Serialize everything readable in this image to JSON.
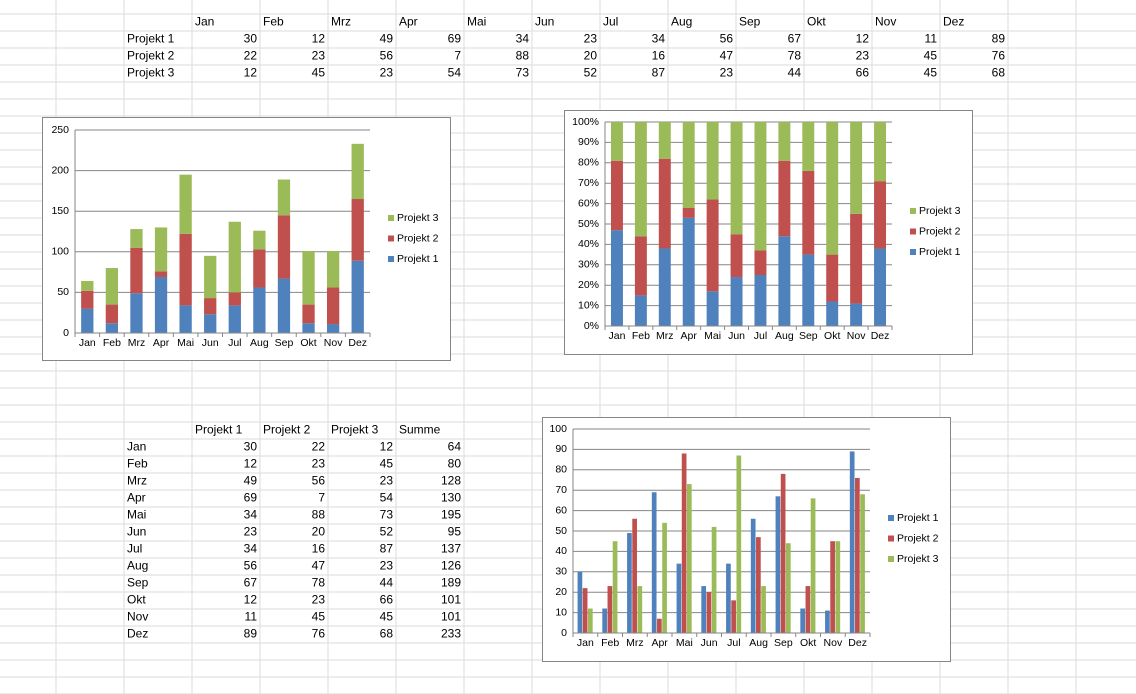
{
  "tables": [
    {
      "columns": [
        "Jan",
        "Feb",
        "Mrz",
        "Apr",
        "Mai",
        "Jun",
        "Jul",
        "Aug",
        "Sep",
        "Okt",
        "Nov",
        "Dez"
      ],
      "rows": [
        {
          "label": "Projekt 1",
          "cells": [
            30,
            12,
            49,
            69,
            34,
            23,
            34,
            56,
            67,
            12,
            11,
            89
          ]
        },
        {
          "label": "Projekt 2",
          "cells": [
            22,
            23,
            56,
            7,
            88,
            20,
            16,
            47,
            78,
            23,
            45,
            76
          ]
        },
        {
          "label": "Projekt 3",
          "cells": [
            12,
            45,
            23,
            54,
            73,
            52,
            87,
            23,
            44,
            66,
            45,
            68
          ]
        }
      ]
    },
    {
      "columns": [
        "Projekt 1",
        "Projekt 2",
        "Projekt 3",
        "Summe"
      ],
      "rows": [
        {
          "label": "Jan",
          "cells": [
            30,
            22,
            12,
            64
          ]
        },
        {
          "label": "Feb",
          "cells": [
            12,
            23,
            45,
            80
          ]
        },
        {
          "label": "Mrz",
          "cells": [
            49,
            56,
            23,
            128
          ]
        },
        {
          "label": "Apr",
          "cells": [
            69,
            7,
            54,
            130
          ]
        },
        {
          "label": "Mai",
          "cells": [
            34,
            88,
            73,
            195
          ]
        },
        {
          "label": "Jun",
          "cells": [
            23,
            20,
            52,
            95
          ]
        },
        {
          "label": "Jul",
          "cells": [
            34,
            16,
            87,
            137
          ]
        },
        {
          "label": "Aug",
          "cells": [
            56,
            47,
            23,
            126
          ]
        },
        {
          "label": "Sep",
          "cells": [
            67,
            78,
            44,
            189
          ]
        },
        {
          "label": "Okt",
          "cells": [
            12,
            23,
            66,
            101
          ]
        },
        {
          "label": "Nov",
          "cells": [
            11,
            45,
            45,
            101
          ]
        },
        {
          "label": "Dez",
          "cells": [
            89,
            76,
            68,
            233
          ]
        }
      ]
    }
  ],
  "chart_data": [
    {
      "type": "bar",
      "stacked": true,
      "legend": "right",
      "grid": true,
      "categories": [
        "Jan",
        "Feb",
        "Mrz",
        "Apr",
        "Mai",
        "Jun",
        "Jul",
        "Aug",
        "Sep",
        "Okt",
        "Nov",
        "Dez"
      ],
      "series": [
        {
          "name": "Projekt 1",
          "color": "#4f81bd",
          "values": [
            30,
            12,
            49,
            69,
            34,
            23,
            34,
            56,
            67,
            12,
            11,
            89
          ]
        },
        {
          "name": "Projekt 2",
          "color": "#c0504d",
          "values": [
            22,
            23,
            56,
            7,
            88,
            20,
            16,
            47,
            78,
            23,
            45,
            76
          ]
        },
        {
          "name": "Projekt 3",
          "color": "#9bbb59",
          "values": [
            12,
            45,
            23,
            54,
            73,
            52,
            87,
            23,
            44,
            66,
            45,
            68
          ]
        }
      ],
      "ylim": [
        0,
        250
      ],
      "yticks": [
        0,
        50,
        100,
        150,
        200,
        250
      ]
    },
    {
      "type": "bar",
      "stacked": true,
      "legend": "right",
      "grid": true,
      "categories": [
        "Jan",
        "Feb",
        "Mrz",
        "Apr",
        "Mai",
        "Jun",
        "Jul",
        "Aug",
        "Sep",
        "Okt",
        "Nov",
        "Dez"
      ],
      "series": [
        {
          "name": "Projekt 1",
          "color": "#4f81bd",
          "values": [
            47,
            15,
            38,
            53,
            17,
            24,
            25,
            44,
            35,
            12,
            11,
            38
          ]
        },
        {
          "name": "Projekt 2",
          "color": "#c0504d",
          "values": [
            34,
            29,
            44,
            5,
            45,
            21,
            12,
            37,
            41,
            23,
            44,
            33
          ]
        },
        {
          "name": "Projekt 3",
          "color": "#9bbb59",
          "values": [
            19,
            56,
            18,
            42,
            38,
            55,
            63,
            19,
            24,
            65,
            45,
            29
          ]
        }
      ],
      "ylim": [
        0,
        100
      ],
      "yticks": [
        {
          "value": 0,
          "label": "0%"
        },
        {
          "value": 10,
          "label": "10%"
        },
        {
          "value": 20,
          "label": "20%"
        },
        {
          "value": 30,
          "label": "30%"
        },
        {
          "value": 40,
          "label": "40%"
        },
        {
          "value": 50,
          "label": "50%"
        },
        {
          "value": 60,
          "label": "60%"
        },
        {
          "value": 70,
          "label": "70%"
        },
        {
          "value": 80,
          "label": "80%"
        },
        {
          "value": 90,
          "label": "90%"
        },
        {
          "value": 100,
          "label": "100%"
        }
      ]
    },
    {
      "type": "bar",
      "stacked": false,
      "legend": "right",
      "grid": true,
      "categories": [
        "Jan",
        "Feb",
        "Mrz",
        "Apr",
        "Mai",
        "Jun",
        "Jul",
        "Aug",
        "Sep",
        "Okt",
        "Nov",
        "Dez"
      ],
      "series": [
        {
          "name": "Projekt 1",
          "color": "#4f81bd",
          "values": [
            30,
            12,
            49,
            69,
            34,
            23,
            34,
            56,
            67,
            12,
            11,
            89
          ]
        },
        {
          "name": "Projekt 2",
          "color": "#c0504d",
          "values": [
            22,
            23,
            56,
            7,
            88,
            20,
            16,
            47,
            78,
            23,
            45,
            76
          ]
        },
        {
          "name": "Projekt 3",
          "color": "#9bbb59",
          "values": [
            12,
            45,
            23,
            54,
            73,
            52,
            87,
            23,
            44,
            66,
            45,
            68
          ]
        }
      ],
      "ylim": [
        0,
        100
      ],
      "yticks": [
        0,
        10,
        20,
        30,
        40,
        50,
        60,
        70,
        80,
        90,
        100
      ]
    }
  ]
}
